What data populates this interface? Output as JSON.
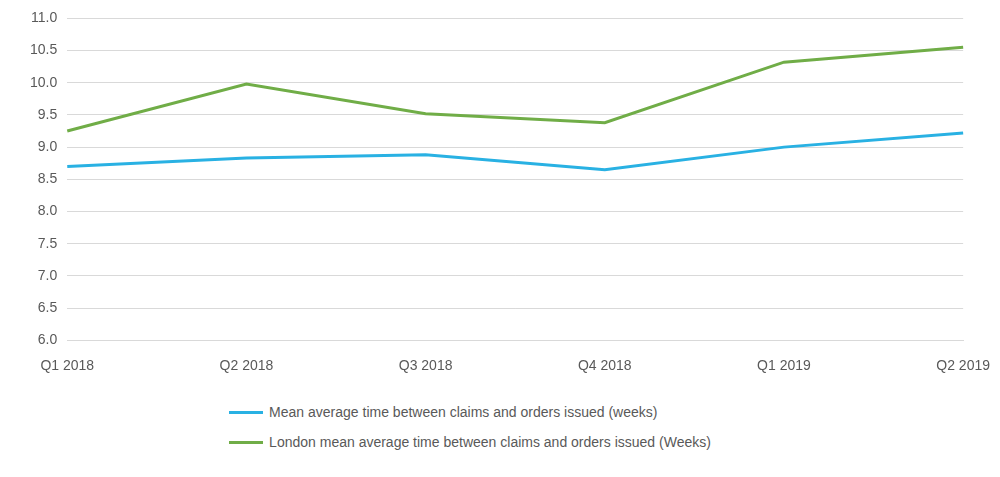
{
  "chart_data": {
    "type": "line",
    "categories": [
      "Q1 2018",
      "Q2 2018",
      "Q3 2018",
      "Q4 2018",
      "Q1 2019",
      "Q2 2019"
    ],
    "series": [
      {
        "name": "Mean average time between claims and orders issued (weeks)",
        "color": "#29b1e3",
        "marker": "none",
        "line_style": "solid",
        "values": [
          8.7,
          8.83,
          8.88,
          8.65,
          9.0,
          9.22
        ]
      },
      {
        "name": "London mean average time between claims and orders issued (Weeks)",
        "color": "#70ad47",
        "marker": "none",
        "line_style": "solid",
        "values": [
          9.25,
          9.98,
          9.52,
          9.38,
          10.32,
          10.55
        ]
      }
    ],
    "ylim": [
      6,
      11
    ],
    "yticks": [
      {
        "value": 6,
        "label": "6.0"
      },
      6.5,
      {
        "value": 7,
        "label": "7.0"
      },
      7.5,
      {
        "value": 8,
        "label": "8.0"
      },
      8.5,
      {
        "value": 9,
        "label": "9.0"
      },
      9.5,
      {
        "value": 10,
        "label": "10.0"
      },
      10.5,
      {
        "value": 11,
        "label": "11.0"
      }
    ],
    "grid": true,
    "legend": "bottom"
  }
}
